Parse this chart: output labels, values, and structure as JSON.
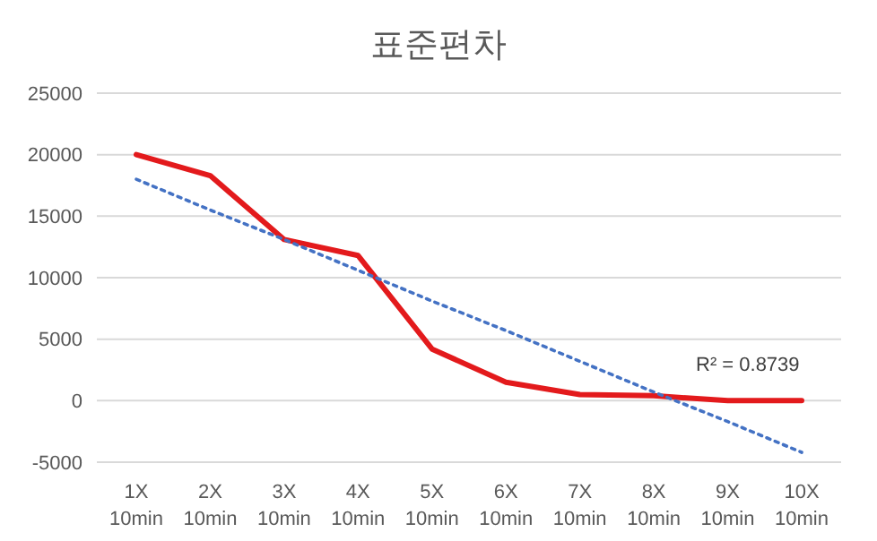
{
  "chart_data": {
    "type": "line",
    "title": "표준편차",
    "categories": [
      "1X 10min",
      "2X 10min",
      "3X 10min",
      "4X 10min",
      "5X 10min",
      "6X 10min",
      "7X 10min",
      "8X 10min",
      "9X 10min",
      "10X 10min"
    ],
    "series": [
      {
        "color": "#e31a1c",
        "values": [
          20000,
          18300,
          13100,
          11800,
          4200,
          1500,
          500,
          400,
          0,
          0
        ]
      },
      {
        "type": "line",
        "line_style": "dotted",
        "color": "#4472c4",
        "values": [
          18000,
          15500,
          13100,
          10600,
          8100,
          5700,
          3200,
          700,
          -1700,
          -4200
        ]
      }
    ],
    "ylim": [
      -5000,
      25000
    ],
    "yticks": [
      -5000,
      0,
      5000,
      10000,
      15000,
      20000,
      25000
    ],
    "grid": "y",
    "marker": "none",
    "annotations": [
      "R² = 0.8739"
    ]
  }
}
